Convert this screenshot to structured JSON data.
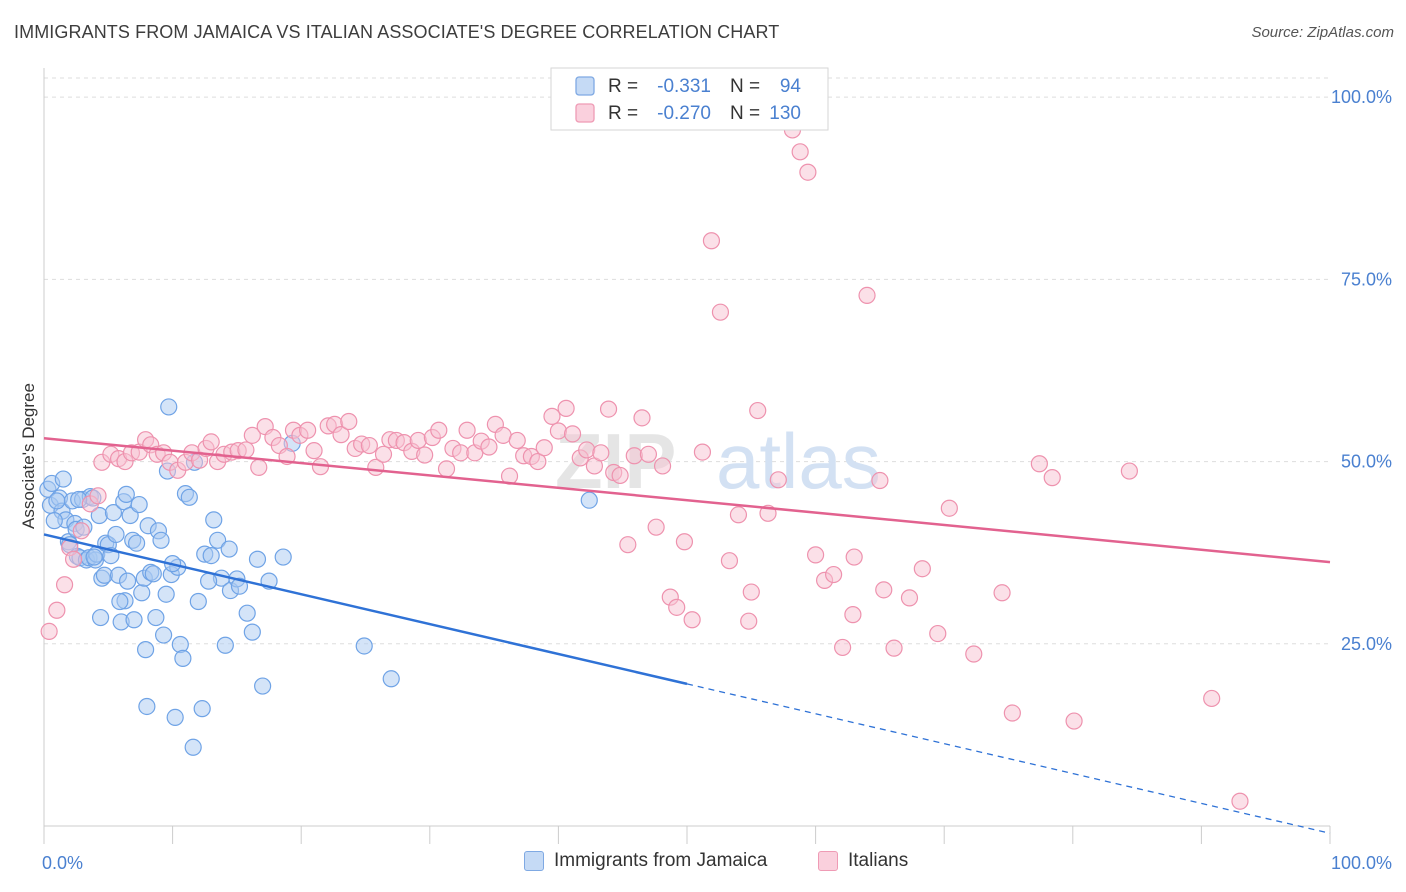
{
  "title": "IMMIGRANTS FROM JAMAICA VS ITALIAN ASSOCIATE'S DEGREE CORRELATION CHART",
  "source": "Source: ZipAtlas.com",
  "watermark": {
    "zip": "ZIP",
    "atlas": "atlas"
  },
  "colors": {
    "blue_fill": "#a9c9f2",
    "blue_stroke": "#6fa3e6",
    "blue_line": "#2f72d6",
    "pink_fill": "#f8c2d2",
    "pink_stroke": "#ee92ae",
    "pink_line": "#e2628f",
    "tick_text": "#4a80d0",
    "grid": "#dddddd",
    "axis": "#cccccc"
  },
  "legend_top": {
    "rows": [
      {
        "r_label": "R =",
        "r_value": "-0.331",
        "n_label": "N =",
        "n_value": "94",
        "color": "blue"
      },
      {
        "r_label": "R =",
        "r_value": "-0.270",
        "n_label": "N =",
        "n_value": "130",
        "color": "pink"
      }
    ]
  },
  "legend_bottom": [
    {
      "label": "Immigrants from Jamaica",
      "color": "blue"
    },
    {
      "label": "Italians",
      "color": "pink"
    }
  ],
  "chart_data": {
    "type": "scatter",
    "title": "IMMIGRANTS FROM JAMAICA VS ITALIAN ASSOCIATE'S DEGREE CORRELATION CHART",
    "xlabel": "",
    "ylabel": "Associate's Degree",
    "xlim": [
      0,
      100
    ],
    "ylim": [
      0,
      104
    ],
    "x_tick_labels": [
      "0.0%",
      "100.0%"
    ],
    "y_ticks": [
      25,
      50,
      75,
      100
    ],
    "y_tick_labels": [
      "25.0%",
      "50.0%",
      "75.0%",
      "100.0%"
    ],
    "grid": true,
    "series": [
      {
        "name": "Immigrants from Jamaica",
        "color": "blue",
        "points": [
          [
            0.3,
            46.2
          ],
          [
            0.5,
            44.0
          ],
          [
            0.6,
            47.0
          ],
          [
            1.2,
            45.0
          ],
          [
            1.4,
            43.2
          ],
          [
            1.5,
            47.6
          ],
          [
            1.7,
            42.0
          ],
          [
            1.9,
            39.0
          ],
          [
            2.0,
            38.6
          ],
          [
            2.2,
            44.6
          ],
          [
            2.4,
            41.5
          ],
          [
            2.5,
            40.7
          ],
          [
            2.6,
            37.0
          ],
          [
            2.8,
            36.8
          ],
          [
            3.0,
            44.8
          ],
          [
            3.1,
            41.0
          ],
          [
            3.3,
            36.5
          ],
          [
            3.5,
            36.8
          ],
          [
            3.6,
            45.2
          ],
          [
            3.8,
            45.0
          ],
          [
            4.0,
            36.5
          ],
          [
            4.1,
            37.3
          ],
          [
            4.3,
            42.6
          ],
          [
            4.4,
            28.6
          ],
          [
            4.5,
            34.0
          ],
          [
            4.7,
            34.4
          ],
          [
            4.8,
            38.8
          ],
          [
            5.0,
            38.6
          ],
          [
            5.2,
            37.1
          ],
          [
            5.4,
            43.0
          ],
          [
            5.6,
            40.0
          ],
          [
            5.8,
            34.4
          ],
          [
            6.0,
            28.0
          ],
          [
            6.2,
            44.5
          ],
          [
            6.3,
            30.9
          ],
          [
            6.5,
            33.6
          ],
          [
            6.7,
            42.6
          ],
          [
            6.9,
            39.2
          ],
          [
            7.0,
            28.3
          ],
          [
            7.2,
            38.8
          ],
          [
            7.4,
            44.1
          ],
          [
            7.6,
            32.0
          ],
          [
            7.8,
            34.0
          ],
          [
            7.9,
            24.2
          ],
          [
            8.1,
            41.2
          ],
          [
            8.3,
            34.8
          ],
          [
            8.5,
            34.6
          ],
          [
            8.7,
            28.6
          ],
          [
            8.9,
            40.5
          ],
          [
            9.1,
            39.2
          ],
          [
            9.3,
            26.2
          ],
          [
            9.5,
            31.8
          ],
          [
            9.7,
            57.5
          ],
          [
            9.9,
            34.5
          ],
          [
            10.2,
            14.9
          ],
          [
            10.4,
            35.5
          ],
          [
            10.6,
            24.9
          ],
          [
            10.8,
            23.0
          ],
          [
            11.0,
            45.6
          ],
          [
            11.3,
            45.1
          ],
          [
            11.6,
            10.8
          ],
          [
            12.0,
            30.8
          ],
          [
            12.3,
            16.1
          ],
          [
            12.5,
            37.3
          ],
          [
            13.0,
            37.1
          ],
          [
            13.2,
            42.0
          ],
          [
            13.5,
            39.2
          ],
          [
            13.8,
            34.0
          ],
          [
            14.1,
            24.8
          ],
          [
            14.5,
            32.3
          ],
          [
            15.0,
            33.9
          ],
          [
            15.2,
            32.9
          ],
          [
            15.8,
            29.2
          ],
          [
            16.2,
            26.6
          ],
          [
            16.6,
            36.6
          ],
          [
            17.0,
            19.2
          ],
          [
            17.5,
            33.6
          ],
          [
            19.3,
            52.5
          ],
          [
            24.9,
            24.7
          ],
          [
            27.0,
            20.2
          ],
          [
            1.0,
            44.6
          ],
          [
            2.7,
            44.8
          ],
          [
            5.9,
            30.8
          ],
          [
            8.0,
            16.4
          ],
          [
            10.0,
            36.0
          ],
          [
            12.8,
            33.6
          ],
          [
            0.8,
            41.9
          ],
          [
            3.9,
            36.9
          ],
          [
            6.4,
            45.5
          ],
          [
            9.6,
            48.7
          ],
          [
            11.7,
            49.9
          ],
          [
            42.4,
            44.7
          ],
          [
            14.4,
            38.0
          ],
          [
            18.6,
            36.9
          ]
        ],
        "trend": {
          "x0": 0,
          "y0": 40.0,
          "x_solid_end": 50.0,
          "x1": 100,
          "y1": -1.0
        }
      },
      {
        "name": "Italians",
        "color": "pink",
        "points": [
          [
            0.4,
            26.7
          ],
          [
            1.0,
            29.6
          ],
          [
            1.6,
            33.1
          ],
          [
            2.0,
            38.2
          ],
          [
            2.3,
            36.6
          ],
          [
            2.9,
            40.5
          ],
          [
            3.6,
            44.2
          ],
          [
            4.2,
            45.3
          ],
          [
            4.5,
            49.9
          ],
          [
            5.2,
            51.0
          ],
          [
            5.8,
            50.4
          ],
          [
            6.3,
            50.0
          ],
          [
            6.8,
            51.2
          ],
          [
            7.4,
            51.3
          ],
          [
            7.9,
            53.0
          ],
          [
            8.3,
            52.3
          ],
          [
            8.8,
            51.0
          ],
          [
            9.3,
            51.2
          ],
          [
            9.8,
            49.9
          ],
          [
            10.4,
            48.8
          ],
          [
            11.0,
            49.9
          ],
          [
            11.5,
            51.2
          ],
          [
            12.1,
            50.2
          ],
          [
            12.6,
            51.8
          ],
          [
            13.0,
            52.7
          ],
          [
            13.5,
            50.0
          ],
          [
            14.0,
            51.0
          ],
          [
            14.6,
            51.3
          ],
          [
            15.1,
            51.5
          ],
          [
            15.7,
            51.6
          ],
          [
            16.2,
            53.6
          ],
          [
            16.7,
            49.2
          ],
          [
            17.2,
            54.8
          ],
          [
            17.8,
            53.3
          ],
          [
            18.3,
            52.2
          ],
          [
            18.9,
            50.7
          ],
          [
            19.4,
            54.3
          ],
          [
            19.9,
            53.6
          ],
          [
            20.5,
            54.3
          ],
          [
            21.0,
            51.5
          ],
          [
            21.5,
            49.3
          ],
          [
            22.1,
            54.9
          ],
          [
            22.6,
            55.1
          ],
          [
            23.1,
            53.7
          ],
          [
            23.7,
            55.5
          ],
          [
            24.2,
            51.8
          ],
          [
            24.7,
            52.4
          ],
          [
            25.3,
            52.2
          ],
          [
            25.8,
            49.2
          ],
          [
            26.4,
            51.0
          ],
          [
            26.9,
            53.0
          ],
          [
            27.4,
            52.9
          ],
          [
            28.0,
            52.6
          ],
          [
            28.6,
            51.4
          ],
          [
            29.1,
            52.9
          ],
          [
            29.6,
            50.9
          ],
          [
            30.2,
            53.3
          ],
          [
            30.7,
            54.3
          ],
          [
            31.3,
            49.0
          ],
          [
            31.8,
            51.8
          ],
          [
            32.4,
            51.2
          ],
          [
            32.9,
            54.3
          ],
          [
            33.5,
            51.2
          ],
          [
            34.0,
            52.8
          ],
          [
            34.6,
            52.0
          ],
          [
            35.1,
            55.1
          ],
          [
            35.7,
            53.6
          ],
          [
            36.2,
            48.0
          ],
          [
            36.8,
            52.9
          ],
          [
            37.3,
            50.8
          ],
          [
            37.9,
            50.7
          ],
          [
            38.4,
            50.0
          ],
          [
            38.9,
            51.9
          ],
          [
            39.5,
            56.2
          ],
          [
            40.0,
            54.2
          ],
          [
            40.6,
            57.3
          ],
          [
            41.1,
            53.8
          ],
          [
            41.7,
            50.5
          ],
          [
            42.2,
            51.6
          ],
          [
            42.8,
            49.4
          ],
          [
            43.3,
            51.2
          ],
          [
            43.9,
            57.2
          ],
          [
            44.3,
            48.5
          ],
          [
            44.8,
            48.1
          ],
          [
            45.4,
            38.6
          ],
          [
            45.9,
            50.8
          ],
          [
            46.5,
            56.0
          ],
          [
            47.0,
            51.0
          ],
          [
            47.6,
            41.0
          ],
          [
            48.1,
            49.4
          ],
          [
            48.7,
            31.4
          ],
          [
            49.2,
            30.0
          ],
          [
            49.8,
            39.0
          ],
          [
            50.4,
            28.3
          ],
          [
            51.2,
            51.3
          ],
          [
            51.9,
            80.3
          ],
          [
            52.6,
            70.5
          ],
          [
            53.3,
            36.4
          ],
          [
            54.0,
            42.7
          ],
          [
            54.8,
            28.1
          ],
          [
            55.5,
            57.0
          ],
          [
            56.3,
            42.9
          ],
          [
            57.1,
            47.5
          ],
          [
            58.2,
            95.5
          ],
          [
            58.8,
            92.5
          ],
          [
            59.4,
            89.7
          ],
          [
            60.0,
            37.2
          ],
          [
            60.7,
            33.7
          ],
          [
            61.4,
            34.5
          ],
          [
            62.1,
            24.5
          ],
          [
            63.0,
            36.9
          ],
          [
            64.0,
            72.8
          ],
          [
            65.0,
            47.4
          ],
          [
            66.1,
            24.4
          ],
          [
            67.3,
            31.3
          ],
          [
            68.3,
            35.3
          ],
          [
            69.5,
            26.4
          ],
          [
            70.4,
            43.6
          ],
          [
            72.3,
            23.6
          ],
          [
            75.3,
            15.5
          ],
          [
            77.4,
            49.7
          ],
          [
            78.4,
            47.8
          ],
          [
            80.1,
            14.4
          ],
          [
            84.4,
            48.7
          ],
          [
            90.8,
            17.5
          ],
          [
            93.0,
            3.4
          ],
          [
            62.9,
            29.0
          ],
          [
            65.3,
            32.4
          ],
          [
            55.0,
            32.1
          ],
          [
            74.5,
            32.0
          ]
        ],
        "trend": {
          "x0": 0,
          "y0": 53.2,
          "x1": 100,
          "y1": 36.2
        }
      }
    ]
  }
}
